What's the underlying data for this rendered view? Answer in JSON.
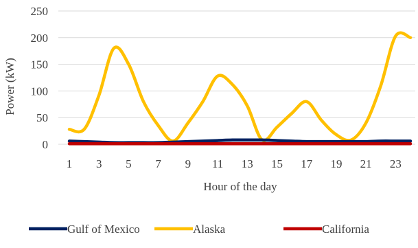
{
  "chart_data": {
    "type": "line",
    "title": "",
    "xlabel": "Hour of the day",
    "ylabel": "Power (kW)",
    "ylim": [
      0,
      250
    ],
    "yticks": [
      0,
      50,
      100,
      150,
      200,
      250
    ],
    "x": [
      1,
      2,
      3,
      4,
      5,
      6,
      7,
      8,
      9,
      10,
      11,
      12,
      13,
      14,
      15,
      16,
      17,
      18,
      19,
      20,
      21,
      22,
      23,
      24
    ],
    "xtick_labels": [
      "1",
      "3",
      "5",
      "7",
      "9",
      "11",
      "13",
      "15",
      "17",
      "19",
      "21",
      "23"
    ],
    "xtick_values": [
      1,
      3,
      5,
      7,
      9,
      11,
      13,
      15,
      17,
      19,
      21,
      23
    ],
    "grid": "horizontal",
    "legend_position": "bottom",
    "series": [
      {
        "name": "Gulf of Mexico",
        "color": "#002060",
        "values": [
          6,
          5,
          4,
          3,
          3,
          3,
          3,
          4,
          5,
          6,
          7,
          8,
          8,
          8,
          7,
          6,
          5,
          5,
          5,
          5,
          5,
          6,
          6,
          6
        ]
      },
      {
        "name": "Alaska",
        "color": "#FFC000",
        "values": [
          28,
          28,
          92,
          180,
          150,
          80,
          35,
          6,
          40,
          80,
          128,
          112,
          72,
          8,
          32,
          58,
          80,
          45,
          18,
          8,
          40,
          110,
          203,
          200
        ]
      },
      {
        "name": "California",
        "color": "#C00000",
        "values": [
          1,
          1,
          1,
          1,
          1,
          1,
          1,
          1,
          1,
          1,
          1,
          1,
          1,
          1,
          1,
          1,
          1,
          1,
          1,
          1,
          1,
          1,
          1,
          1
        ]
      }
    ]
  }
}
